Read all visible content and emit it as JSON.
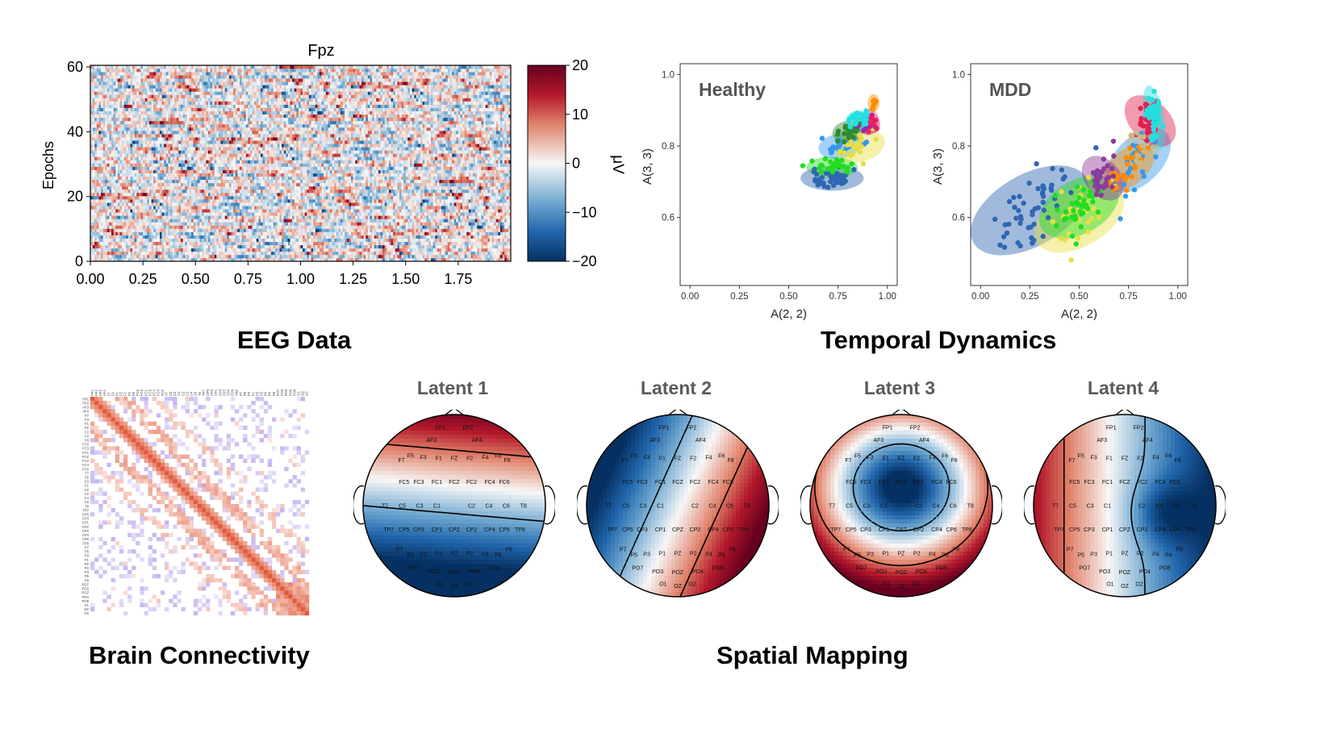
{
  "sections": {
    "eeg": {
      "caption": "EEG Data"
    },
    "temporal": {
      "caption": "Temporal Dynamics"
    },
    "connectivity": {
      "caption": "Brain Connectivity"
    },
    "spatial": {
      "caption": "Spatial Mapping"
    }
  },
  "eeg_heatmap": {
    "title": "Fpz",
    "ylabel": "Epochs",
    "xticks": [
      "0.00",
      "0.25",
      "0.50",
      "0.75",
      "1.00",
      "1.25",
      "1.50",
      "1.75"
    ],
    "yticks": [
      "0",
      "20",
      "40",
      "60"
    ],
    "colorbar_ticks": [
      "20",
      "10",
      "0",
      "−10",
      "−20"
    ],
    "colorbar_label": "μV",
    "colors": {
      "positive": "#67001f",
      "negative": "#053061",
      "neutral": "#f7f7f7"
    }
  },
  "chart_data": [
    {
      "type": "scatter",
      "title": "Healthy",
      "xlabel": "A(2, 2)",
      "ylabel": "A(3, 3)",
      "xlim": [
        -0.05,
        1.05
      ],
      "ylim": [
        0.41,
        1.03
      ],
      "xticks": [
        "0.00",
        "0.25",
        "0.50",
        "0.75",
        "1.00"
      ],
      "yticks": [
        "0.6",
        "0.8",
        "1.0"
      ],
      "clusters": [
        {
          "color": "#2f67b1",
          "center": [
            0.72,
            0.71
          ],
          "spread": [
            0.12,
            0.02
          ],
          "rx": 0.16,
          "ry": 0.035,
          "angle": 0,
          "n": 40
        },
        {
          "color": "#22dd22",
          "center": [
            0.72,
            0.74
          ],
          "spread": [
            0.1,
            0.015
          ],
          "rx": 0.13,
          "ry": 0.03,
          "angle": 0,
          "n": 25
        },
        {
          "color": "#3399ee",
          "center": [
            0.76,
            0.8
          ],
          "spread": [
            0.08,
            0.02
          ],
          "rx": 0.11,
          "ry": 0.035,
          "angle": 10,
          "n": 22
        },
        {
          "color": "#e8de44",
          "center": [
            0.86,
            0.8
          ],
          "spread": [
            0.08,
            0.03
          ],
          "rx": 0.13,
          "ry": 0.045,
          "angle": 15,
          "n": 20
        },
        {
          "color": "#2e8b2e",
          "center": [
            0.8,
            0.84
          ],
          "spread": [
            0.06,
            0.02
          ],
          "rx": 0.08,
          "ry": 0.03,
          "angle": 10,
          "n": 18
        },
        {
          "color": "#9c27b0",
          "center": [
            0.9,
            0.86
          ],
          "spread": [
            0.03,
            0.02
          ],
          "rx": 0.05,
          "ry": 0.03,
          "angle": 20,
          "n": 12
        },
        {
          "color": "#e91e63",
          "center": [
            0.92,
            0.87
          ],
          "spread": [
            0.03,
            0.02
          ],
          "rx": 0.04,
          "ry": 0.035,
          "angle": 20,
          "n": 12
        },
        {
          "color": "#22e0e0",
          "center": [
            0.85,
            0.87
          ],
          "spread": [
            0.05,
            0.02
          ],
          "rx": 0.06,
          "ry": 0.03,
          "angle": 10,
          "n": 25
        },
        {
          "color": "#ff8c00",
          "center": [
            0.93,
            0.92
          ],
          "spread": [
            0.02,
            0.015
          ],
          "rx": 0.03,
          "ry": 0.025,
          "angle": 0,
          "n": 12
        }
      ]
    },
    {
      "type": "scatter",
      "title": "MDD",
      "xlabel": "A(2, 2)",
      "ylabel": "A(3, 3)",
      "xlim": [
        -0.05,
        1.05
      ],
      "ylim": [
        0.41,
        1.03
      ],
      "xticks": [
        "0.00",
        "0.25",
        "0.50",
        "0.75",
        "1.00"
      ],
      "yticks": [
        "0.6",
        "0.8",
        "1.0"
      ],
      "clusters": [
        {
          "color": "#2f67b1",
          "center": [
            0.25,
            0.62
          ],
          "spread": [
            0.18,
            0.07
          ],
          "rx": 0.33,
          "ry": 0.1,
          "angle": 30,
          "n": 55
        },
        {
          "color": "#e8de44",
          "center": [
            0.5,
            0.6
          ],
          "spread": [
            0.14,
            0.06
          ],
          "rx": 0.25,
          "ry": 0.08,
          "angle": 30,
          "n": 35
        },
        {
          "color": "#22dd22",
          "center": [
            0.5,
            0.63
          ],
          "spread": [
            0.12,
            0.05
          ],
          "rx": 0.22,
          "ry": 0.075,
          "angle": 30,
          "n": 40
        },
        {
          "color": "#3399ee",
          "center": [
            0.8,
            0.76
          ],
          "spread": [
            0.1,
            0.05
          ],
          "rx": 0.2,
          "ry": 0.065,
          "angle": 45,
          "n": 25
        },
        {
          "color": "#ff8c00",
          "center": [
            0.75,
            0.74
          ],
          "spread": [
            0.1,
            0.04
          ],
          "rx": 0.15,
          "ry": 0.05,
          "angle": 40,
          "n": 30
        },
        {
          "color": "#8b3c9c",
          "center": [
            0.62,
            0.71
          ],
          "spread": [
            0.06,
            0.04
          ],
          "rx": 0.09,
          "ry": 0.07,
          "angle": 40,
          "n": 30
        },
        {
          "color": "#e02050",
          "center": [
            0.86,
            0.87
          ],
          "spread": [
            0.05,
            0.05
          ],
          "rx": 0.1,
          "ry": 0.085,
          "angle": 45,
          "n": 35
        },
        {
          "color": "#22e0e0",
          "center": [
            0.88,
            0.88
          ],
          "spread": [
            0.03,
            0.05
          ],
          "rx": 0.05,
          "ry": 0.09,
          "angle": 10,
          "n": 40
        },
        {
          "color": "#c8b888",
          "center": [
            0.82,
            0.79
          ],
          "spread": [
            0.05,
            0.04
          ],
          "rx": 0.08,
          "ry": 0.05,
          "angle": 40,
          "n": 12
        }
      ]
    }
  ],
  "connectivity": {
    "channels": [
      "FP1",
      "FP2",
      "AF3",
      "AF4",
      "F7",
      "F3",
      "F1",
      "FZ",
      "F2",
      "F4",
      "F8",
      "FC5",
      "FC3",
      "FC1",
      "FCZ",
      "FC2",
      "FC4",
      "FC6",
      "T7",
      "C5",
      "C3",
      "C1",
      "CZ",
      "C2",
      "C4",
      "C6",
      "T8",
      "TP7",
      "CP5",
      "CP3",
      "CP1",
      "CPZ",
      "CP2",
      "CP4",
      "CP6",
      "TP8",
      "P7",
      "P5",
      "P3",
      "P1",
      "PZ",
      "P2",
      "P4",
      "P6",
      "P8",
      "PO7",
      "PO3",
      "POZ",
      "PO4",
      "PO8",
      "O1",
      "OZ",
      "O2"
    ],
    "colors": {
      "positive": "#e05a3a",
      "negative": "#b9a6ec"
    }
  },
  "topomaps": [
    {
      "title": "Latent 1"
    },
    {
      "title": "Latent 2"
    },
    {
      "title": "Latent 3"
    },
    {
      "title": "Latent 4"
    }
  ],
  "topomap_electrodes": {
    "labels": [
      "FP1",
      "FP2",
      "AF3",
      "AF4",
      "F7",
      "F3",
      "F1",
      "FZ",
      "F2",
      "F4",
      "F6",
      "F8",
      "F5",
      "FC5",
      "FC3",
      "FC1",
      "FCZ",
      "FC2",
      "FC4",
      "FC6",
      "T7",
      "C5",
      "C3",
      "C1",
      "C2",
      "C4",
      "C6",
      "T8",
      "TP7",
      "CP5",
      "CP3",
      "CP1",
      "CPZ",
      "CP2",
      "CP4",
      "CP6",
      "TP8",
      "P7",
      "P5",
      "P3",
      "P1",
      "PZ",
      "P2",
      "P4",
      "P6",
      "P8",
      "PO7",
      "PO3",
      "POZ",
      "PO4",
      "PO8",
      "O1",
      "OZ",
      "O2"
    ]
  }
}
